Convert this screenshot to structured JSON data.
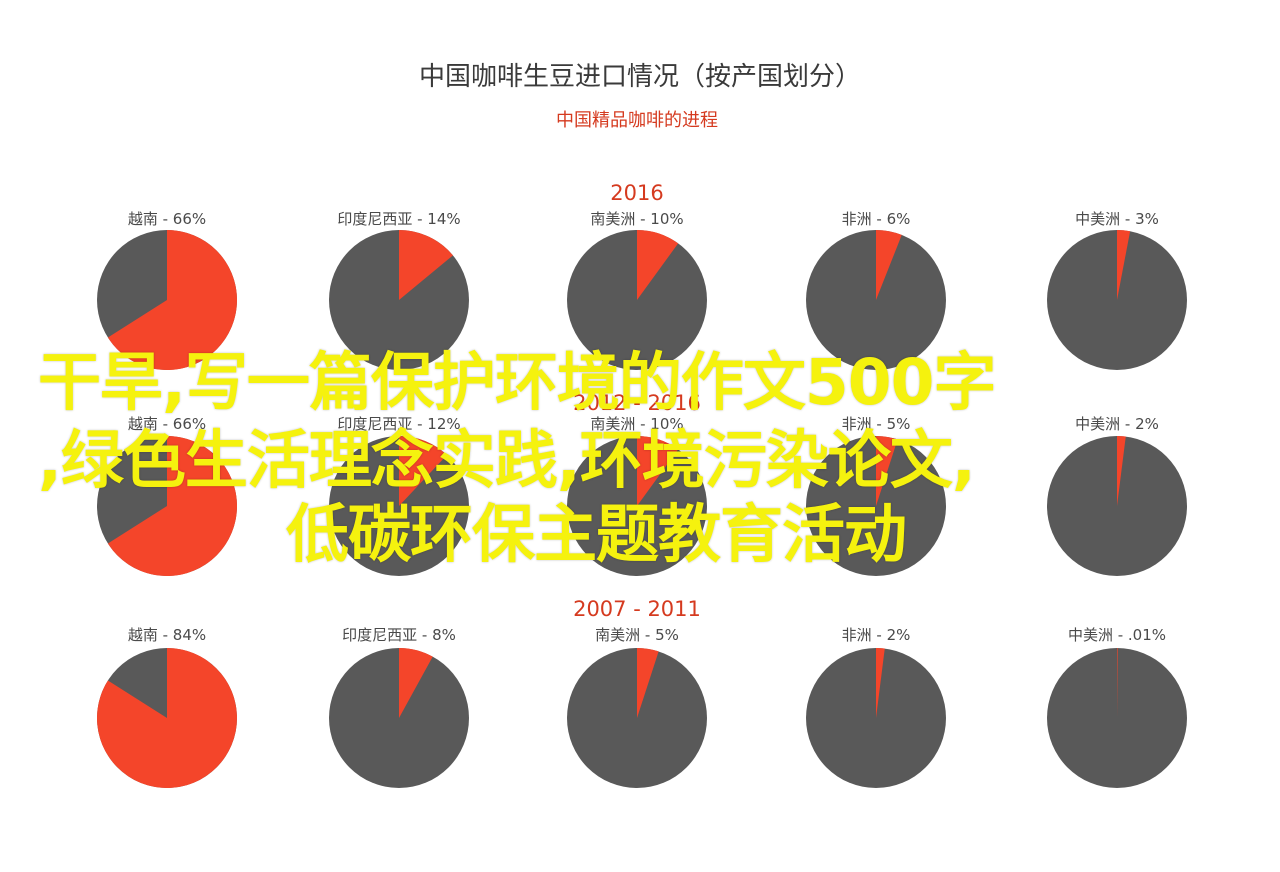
{
  "chart_data": {
    "type": "pie",
    "title": "中国咖啡生豆进口情况（按产国划分）",
    "subtitle": "中国精品咖啡的进程",
    "colors": {
      "highlight": "#f4452a",
      "rest": "#595959"
    },
    "groups": [
      {
        "label": "2016",
        "slices": [
          {
            "country": "越南",
            "value_text": "66%",
            "value": 66
          },
          {
            "country": "印度尼西亚",
            "value_text": "14%",
            "value": 14
          },
          {
            "country": "南美洲",
            "value_text": "10%",
            "value": 10
          },
          {
            "country": "非洲",
            "value_text": "6%",
            "value": 6
          },
          {
            "country": "中美洲",
            "value_text": "3%",
            "value": 3
          }
        ]
      },
      {
        "label": "2012 - 2016",
        "slices": [
          {
            "country": "越南",
            "value_text": "66%",
            "value": 66
          },
          {
            "country": "印度尼西亚",
            "value_text": "12%",
            "value": 12
          },
          {
            "country": "南美洲",
            "value_text": "10%",
            "value": 10
          },
          {
            "country": "非洲",
            "value_text": "5%",
            "value": 5
          },
          {
            "country": "中美洲",
            "value_text": "2%",
            "value": 2
          }
        ]
      },
      {
        "label": "2007 - 2011",
        "slices": [
          {
            "country": "越南",
            "value_text": "84%",
            "value": 84
          },
          {
            "country": "印度尼西亚",
            "value_text": "8%",
            "value": 8
          },
          {
            "country": "南美洲",
            "value_text": "5%",
            "value": 5
          },
          {
            "country": "非洲",
            "value_text": "2%",
            "value": 2
          },
          {
            "country": "中美洲",
            "value_text": ".01%",
            "value": 0.01
          }
        ]
      }
    ]
  },
  "overlay": {
    "line1": "干旱,写一篇保护环境的作文500字",
    "line2": ",绿色生活理念实践,环境污染论文,",
    "line3": "低碳环保主题教育活动"
  }
}
